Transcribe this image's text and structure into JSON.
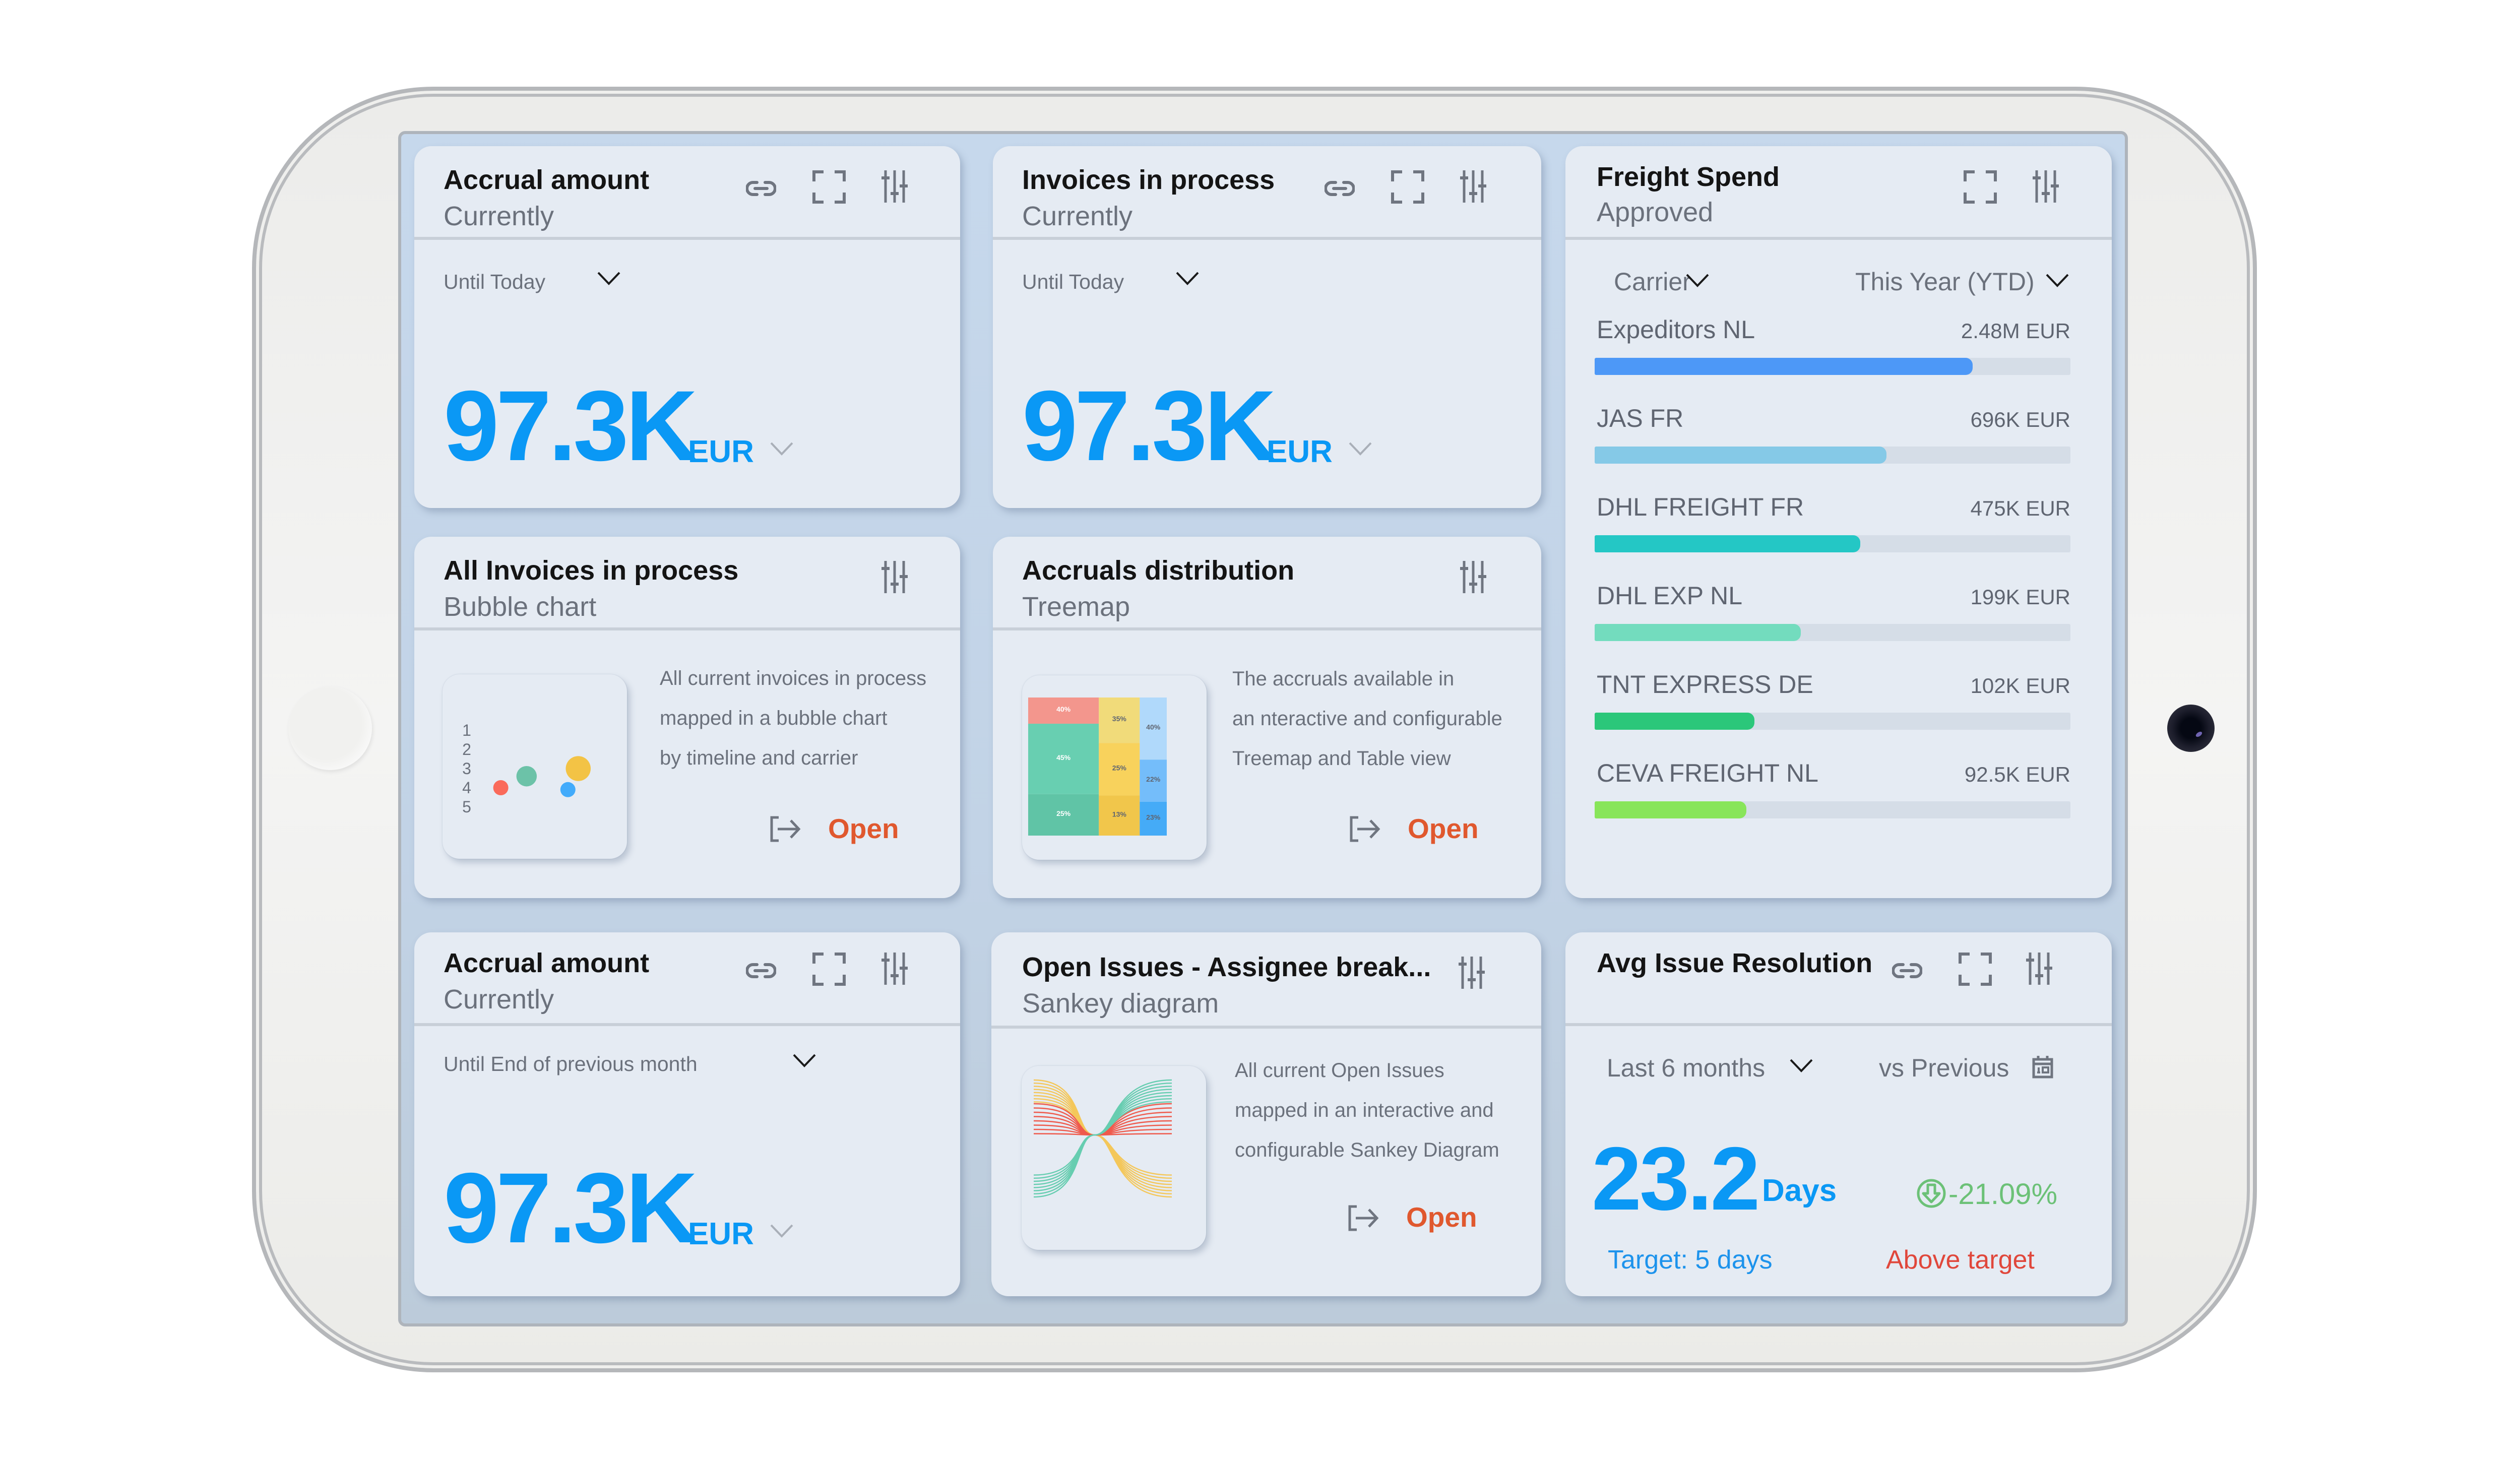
{
  "device": {
    "type": "tablet",
    "home_button": true,
    "camera": true
  },
  "colors": {
    "kpi_blue": "#0a98f5",
    "open_orange": "#e0582e",
    "positive_green": "#6cc177",
    "alert_red": "#e0473b",
    "screen_bg": "#c5d6ea",
    "card_bg": "#e5ebf3"
  },
  "cards": {
    "accrual_top": {
      "title": "Accrual amount",
      "subtitle": "Currently",
      "icons": [
        "link-icon",
        "fullscreen-icon",
        "sliders-icon"
      ],
      "filter": "Until Today",
      "value": "97.3K",
      "unit": "EUR"
    },
    "invoices": {
      "title": "Invoices in process",
      "subtitle": "Currently",
      "icons": [
        "link-icon",
        "fullscreen-icon",
        "sliders-icon"
      ],
      "filter": "Until Today",
      "value": "97.3K",
      "unit": "EUR"
    },
    "freight": {
      "title": "Freight Spend",
      "subtitle": "Approved",
      "icons": [
        "fullscreen-icon",
        "sliders-icon"
      ],
      "filter_group": "Carrier",
      "filter_period": "This Year (YTD)",
      "bars": [
        {
          "name": "Expeditors NL",
          "value": "2.48M EUR",
          "fill_pct": 79.5,
          "color": "#4d98f7"
        },
        {
          "name": "JAS FR",
          "value": "696K EUR",
          "fill_pct": 61.3,
          "color": "#85c9e7"
        },
        {
          "name": "DHL FREIGHT FR",
          "value": "475K EUR",
          "fill_pct": 55.8,
          "color": "#24c7c5"
        },
        {
          "name": "DHL EXP NL",
          "value": "199K EUR",
          "fill_pct": 43.3,
          "color": "#73dcbe"
        },
        {
          "name": "TNT EXPRESS DE",
          "value": "102K EUR",
          "fill_pct": 33.6,
          "color": "#2bc77a"
        },
        {
          "name": "CEVA FREIGHT NL",
          "value": "92.5K EUR",
          "fill_pct": 31.9,
          "color": "#88e55a"
        }
      ]
    },
    "bubble": {
      "title": "All Invoices in process",
      "subtitle": "Bubble chart",
      "icons": [
        "sliders-icon"
      ],
      "description": [
        "All current invoices in process",
        "mapped in a bubble chart",
        "by timeline and carrier"
      ],
      "open_label": "Open",
      "thumb": {
        "y_labels": [
          "1",
          "2",
          "3",
          "4",
          "5"
        ],
        "bubbles": [
          {
            "color": "#fa6a5a",
            "x": 1,
            "y": 4.0,
            "size": 1
          },
          {
            "color": "#6cc2a8",
            "x": 2,
            "y": 3.4,
            "size": 1.35
          },
          {
            "color": "#42abfb",
            "x": 3.6,
            "y": 4.1,
            "size": 1
          },
          {
            "color": "#f3c345",
            "x": 4,
            "y": 3.0,
            "size": 1.65
          }
        ]
      }
    },
    "treemap": {
      "title": "Accruals distribution",
      "subtitle": "Treemap",
      "icons": [
        "sliders-icon"
      ],
      "description": [
        "The accruals available in",
        "an nteractive and configurable",
        "Treemap and Table view"
      ],
      "open_label": "Open",
      "thumb": {
        "columns": [
          {
            "share": 51,
            "cells": [
              {
                "label": "40%",
                "share": 19,
                "color": "#f3968d",
                "light_text": true
              },
              {
                "label": "45%",
                "share": 51,
                "color": "#68cfb1",
                "light_text": true
              },
              {
                "label": "25%",
                "share": 30,
                "color": "#60c4a6",
                "light_text": true
              }
            ]
          },
          {
            "share": 29.5,
            "cells": [
              {
                "label": "35%",
                "share": 33,
                "color": "#f1db7a",
                "light_text": false
              },
              {
                "label": "25%",
                "share": 38,
                "color": "#f8d25c",
                "light_text": false
              },
              {
                "label": "13%",
                "share": 29,
                "color": "#f1c64b",
                "light_text": false
              }
            ]
          },
          {
            "share": 19.5,
            "cells": [
              {
                "label": "40%",
                "share": 45,
                "color": "#b0d9fb",
                "light_text": false
              },
              {
                "label": "22%",
                "share": 30.5,
                "color": "#74bdfa",
                "light_text": false
              },
              {
                "label": "23%",
                "share": 24.5,
                "color": "#45abf7",
                "light_text": false
              }
            ]
          }
        ]
      }
    },
    "accrual_bottom": {
      "title": "Accrual amount",
      "subtitle": "Currently",
      "icons": [
        "link-icon",
        "fullscreen-icon",
        "sliders-icon"
      ],
      "filter": "Until End of previous month",
      "value": "97.3K",
      "unit": "EUR"
    },
    "sankey": {
      "title": "Open Issues - Assignee break...",
      "subtitle": "Sankey diagram",
      "icons": [
        "sliders-icon"
      ],
      "description": [
        "All current Open Issues",
        "mapped in an interactive and",
        "configurable Sankey Diagram"
      ],
      "open_label": "Open",
      "thumb": {
        "colors": [
          "#f4c75a",
          "#ef5a4c",
          "#66cdb0"
        ],
        "lines_per_band": 8
      }
    },
    "avg_issue": {
      "title": "Avg Issue Resolution",
      "icons": [
        "link-icon",
        "fullscreen-icon",
        "sliders-icon"
      ],
      "filter_period": "Last 6 months",
      "compare_label": "vs Previous",
      "value": "23.2",
      "unit": "Days",
      "change": "-21.09%",
      "target": "Target: 5 days",
      "status": "Above target"
    }
  }
}
